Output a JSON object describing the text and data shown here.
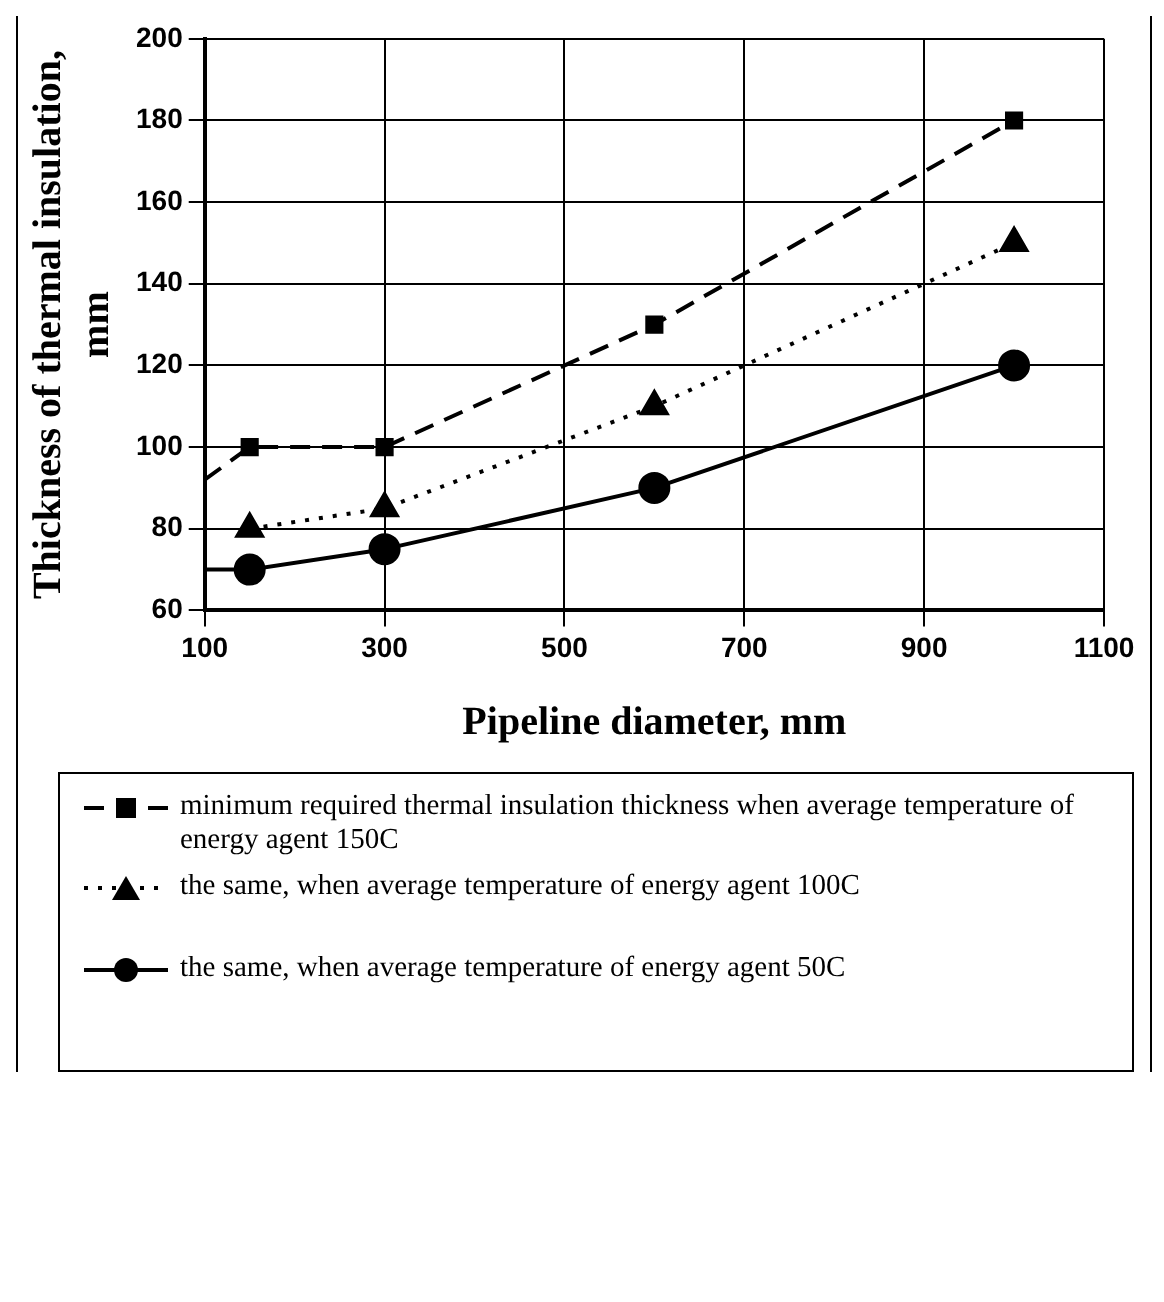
{
  "chart_data": {
    "type": "line",
    "xlabel": "Pipeline diameter, mm",
    "ylabel": "Thickness of thermal insulation, mm",
    "xlim": [
      100,
      1100
    ],
    "xticks": [
      100,
      300,
      500,
      700,
      900,
      1100
    ],
    "ylim": [
      60,
      200
    ],
    "yticks": [
      60,
      80,
      100,
      120,
      140,
      160,
      180,
      200
    ],
    "grid": true,
    "legend": "bottom",
    "series": [
      {
        "name": "minimum required thermal insulation thickness when average temperature of energy agent  150C",
        "color": "#000000",
        "marker": "square",
        "line_style": "dashed",
        "x": [
          100,
          150,
          300,
          600,
          1000
        ],
        "values": [
          92,
          100,
          100,
          130,
          180
        ]
      },
      {
        "name": "the same, when average temperature of energy agent 100C",
        "color": "#000000",
        "marker": "triangle",
        "line_style": "dotted",
        "x": [
          150,
          300,
          600,
          1000
        ],
        "values": [
          80,
          85,
          110,
          150
        ]
      },
      {
        "name": "the same, when average temperature of energy agent  50C",
        "color": "#000000",
        "marker": "circle",
        "line_style": "solid",
        "x": [
          100,
          150,
          300,
          600,
          1000
        ],
        "values": [
          70,
          70,
          75,
          90,
          120
        ]
      }
    ]
  }
}
